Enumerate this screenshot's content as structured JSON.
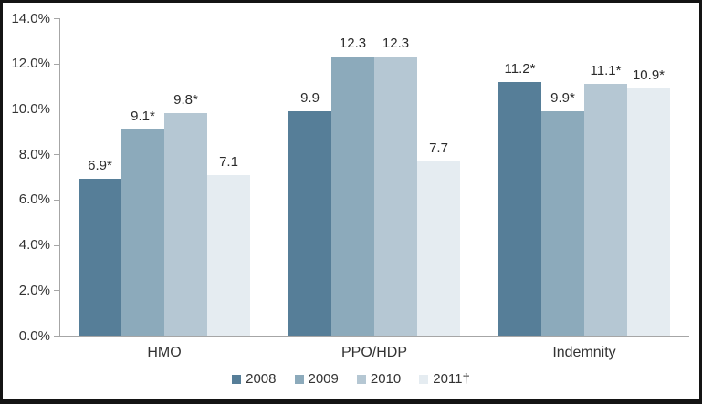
{
  "chart_data": {
    "type": "bar",
    "title": "",
    "categories": [
      "HMO",
      "PPO/HDP",
      "Indemnity"
    ],
    "series": [
      {
        "name": "2008",
        "color": "#567e98",
        "values": [
          6.9,
          9.9,
          11.2
        ],
        "labels": [
          "6.9*",
          "9.9",
          "11.2*"
        ]
      },
      {
        "name": "2009",
        "color": "#8caabb",
        "values": [
          9.1,
          12.3,
          9.9
        ],
        "labels": [
          "9.1*",
          "12.3",
          "9.9*"
        ]
      },
      {
        "name": "2010",
        "color": "#b5c7d3",
        "values": [
          9.8,
          12.3,
          11.1
        ],
        "labels": [
          "9.8*",
          "12.3",
          "11.1*"
        ]
      },
      {
        "name": "2011†",
        "color": "#e5ecf1",
        "values": [
          7.1,
          7.7,
          10.9
        ],
        "labels": [
          "7.1",
          "7.7",
          "10.9*"
        ]
      }
    ],
    "y_axis": {
      "min": 0,
      "max": 14,
      "step": 2,
      "tick_labels": [
        "0.0%",
        "2.0%",
        "4.0%",
        "6.0%",
        "8.0%",
        "10.0%",
        "12.0%",
        "14.0%"
      ]
    },
    "xlabel": "",
    "ylabel": "",
    "grid": false,
    "legend": {
      "position": "bottom",
      "entries": [
        "2008",
        "2009",
        "2010",
        "2011†"
      ]
    }
  },
  "colors": {
    "frame_border": "#141414",
    "axis": "#a6a6a6",
    "text": "#333333",
    "background": "#ffffff"
  }
}
